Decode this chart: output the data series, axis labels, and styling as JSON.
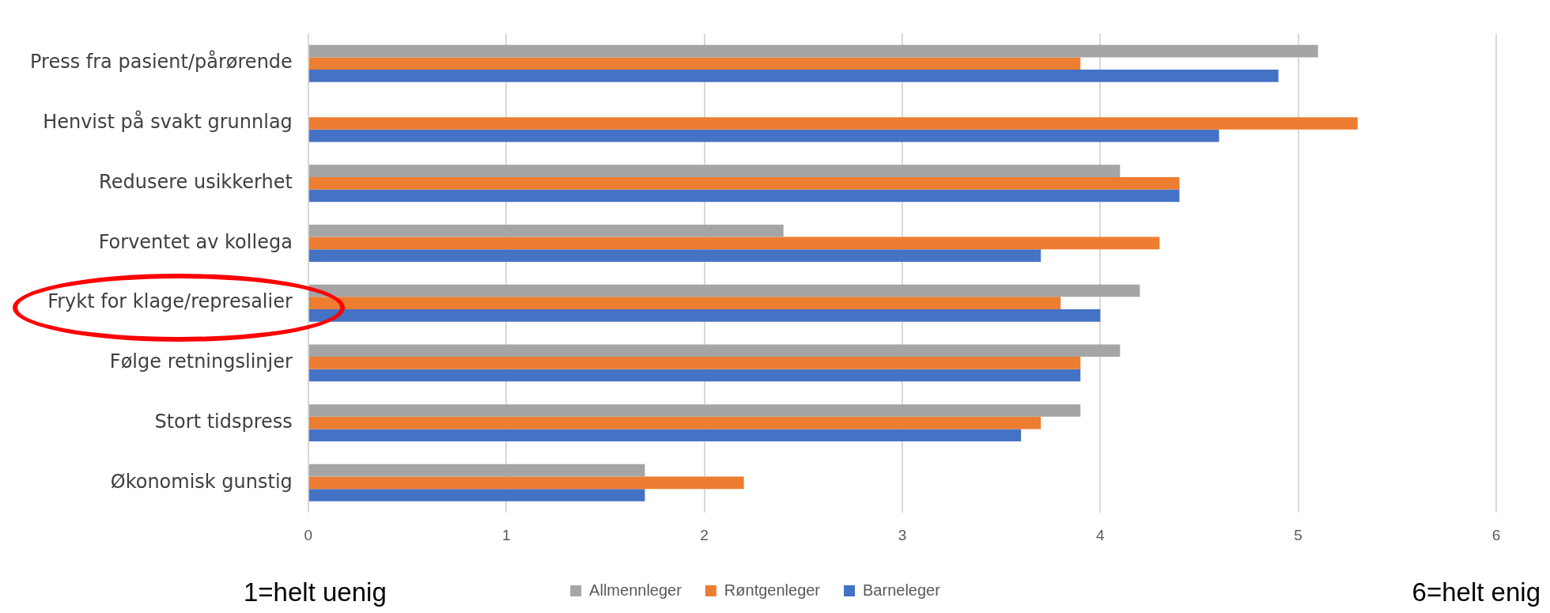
{
  "chart_data": {
    "type": "bar",
    "orientation": "horizontal",
    "categories": [
      "Press fra pasient/pårørende",
      "Henvist på svakt grunnlag",
      "Redusere usikkerhet",
      "Forventet av kollega",
      "Frykt for klage/represalier",
      "Følge retningslinjer",
      "Stort tidspress",
      "Økonomisk gunstig"
    ],
    "series": [
      {
        "name": "Allmennleger",
        "color": "#a5a5a5",
        "values": [
          5.1,
          null,
          4.1,
          2.4,
          4.2,
          4.1,
          3.9,
          1.7
        ]
      },
      {
        "name": "Røntgenleger",
        "color": "#ed7d31",
        "values": [
          3.9,
          5.3,
          4.4,
          4.3,
          3.8,
          3.9,
          3.7,
          2.2
        ]
      },
      {
        "name": "Barneleger",
        "color": "#4472c4",
        "values": [
          4.9,
          4.6,
          4.4,
          3.7,
          4.0,
          3.9,
          3.6,
          1.7
        ]
      }
    ],
    "xlim": [
      0,
      6
    ],
    "xticks": [
      0,
      1,
      2,
      3,
      4,
      5,
      6
    ],
    "grid": "x",
    "legend": "bottom",
    "annotations": [
      "1=helt uenig",
      "6=helt enig"
    ]
  }
}
